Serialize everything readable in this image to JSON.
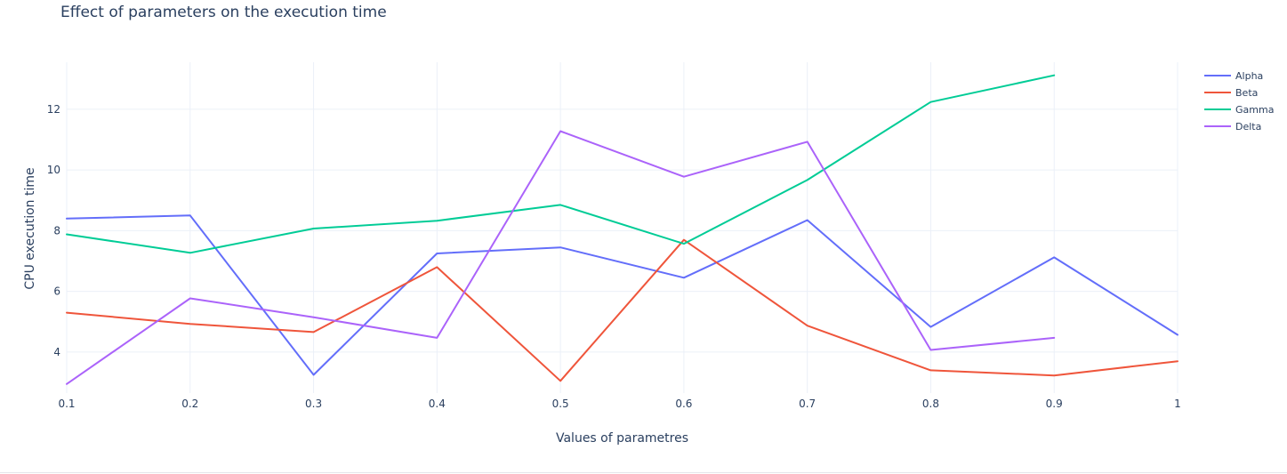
{
  "chart_data": {
    "type": "line",
    "title": "Effect of parameters on the execution time",
    "xlabel": "Values of parametres",
    "ylabel": "CPU execution time",
    "x_tick_labels": [
      "0.1",
      "0.2",
      "0.3",
      "0.4",
      "0.5",
      "0.6",
      "0.7",
      "0.8",
      "0.9",
      "1"
    ],
    "y_tick_labels": [
      "4",
      "6",
      "8",
      "10",
      "12"
    ],
    "xlim": [
      0.1,
      1.0
    ],
    "ylim": [
      2.65,
      13.55
    ],
    "grid": true,
    "legend_position": "top-right",
    "series": [
      {
        "name": "Alpha",
        "color": "#636efa",
        "x": [
          0.1,
          0.2,
          0.3,
          0.4,
          0.5,
          0.6,
          0.7,
          0.8,
          0.9,
          1.0
        ],
        "values": [
          8.4,
          8.5,
          3.25,
          7.25,
          7.45,
          6.45,
          8.35,
          4.83,
          7.12,
          4.57
        ]
      },
      {
        "name": "Beta",
        "color": "#ef553b",
        "x": [
          0.1,
          0.2,
          0.3,
          0.4,
          0.5,
          0.6,
          0.7,
          0.8,
          0.9,
          1.0
        ],
        "values": [
          5.3,
          4.93,
          4.66,
          6.8,
          3.05,
          7.7,
          4.87,
          3.4,
          3.23,
          3.7
        ]
      },
      {
        "name": "Gamma",
        "color": "#00cc96",
        "x": [
          0.1,
          0.2,
          0.3,
          0.4,
          0.5,
          0.6,
          0.7,
          0.8,
          0.9
        ],
        "values": [
          7.88,
          7.27,
          8.07,
          8.33,
          8.85,
          7.57,
          9.67,
          12.24,
          13.12
        ]
      },
      {
        "name": "Delta",
        "color": "#ab63fa",
        "x": [
          0.1,
          0.2,
          0.3,
          0.4,
          0.5,
          0.6,
          0.7,
          0.8,
          0.9
        ],
        "values": [
          2.95,
          5.77,
          5.15,
          4.47,
          11.28,
          9.78,
          10.93,
          4.07,
          4.47
        ]
      }
    ]
  }
}
